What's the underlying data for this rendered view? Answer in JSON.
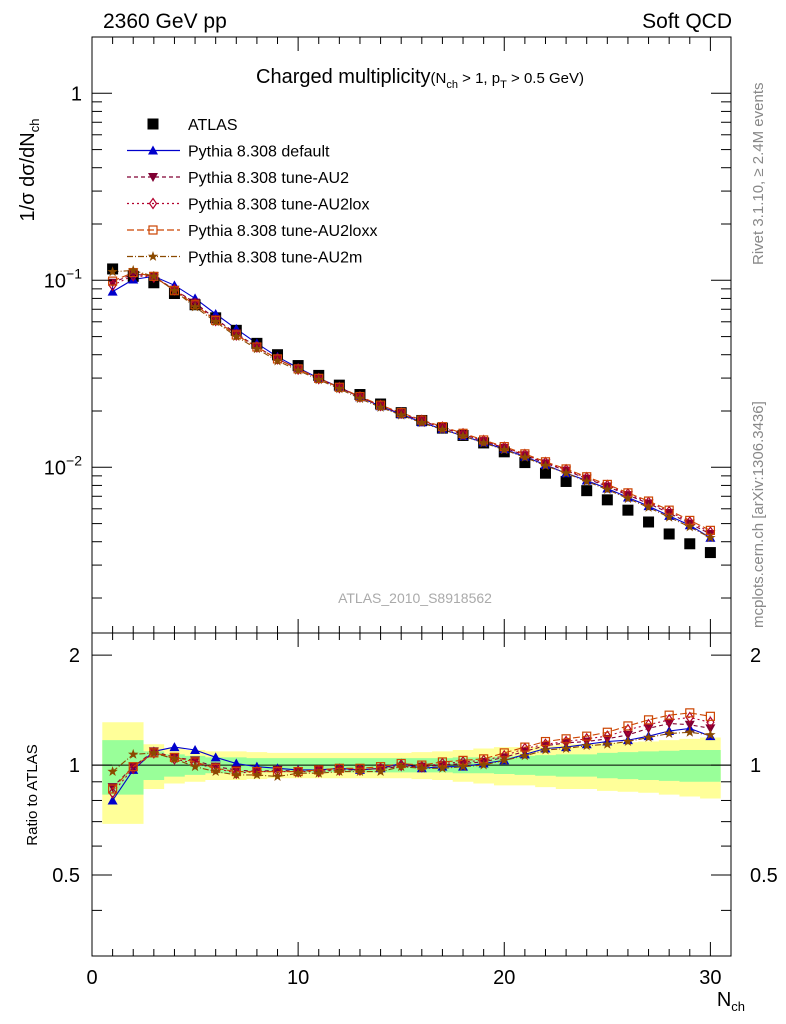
{
  "header": {
    "left": "2360 GeV pp",
    "right": "Soft QCD"
  },
  "side": {
    "rivet": "Rivet 3.1.10, ≥ 2.4M events",
    "mcplots": "mcplots.cern.ch [arXiv:1306.3436]"
  },
  "title": {
    "main": "Charged multiplicity",
    "cut_open": "(N",
    "cut_sub1": "ch",
    "cut_mid": " > 1, p",
    "cut_sub2": "T",
    "cut_close": " > 0.5 GeV)"
  },
  "analysis_id": "ATLAS_2010_S8918562",
  "colors": {
    "data": "#000000",
    "default": "#0000cc",
    "au2": "#800033",
    "au2lox": "#b3002d",
    "au2loxx": "#cc4400",
    "au2m": "#8b4a00",
    "band_inner": "#99ff99",
    "band_outer": "#ffff99"
  },
  "chart_data": [
    {
      "type": "scatter",
      "panel": "main",
      "ylabel_prefix": "1/σ dσ/dN",
      "ylabel_sub": "ch",
      "yscale": "log",
      "xlim": [
        0,
        31
      ],
      "ylim": [
        0.0013,
        2.0
      ],
      "yticks": [
        {
          "base": "1",
          "exp": ""
        },
        {
          "base": "10",
          "exp": "−1"
        },
        {
          "base": "10",
          "exp": "−2"
        }
      ],
      "x": [
        1,
        2,
        3,
        4,
        5,
        6,
        7,
        8,
        9,
        10,
        11,
        12,
        13,
        14,
        15,
        16,
        17,
        18,
        19,
        20,
        21,
        22,
        23,
        24,
        25,
        26,
        27,
        28,
        29,
        30
      ],
      "series": [
        {
          "key": "data",
          "name": "ATLAS",
          "marker": "square",
          "values": [
            0.115,
            0.105,
            0.097,
            0.085,
            0.074,
            0.063,
            0.054,
            0.046,
            0.04,
            0.035,
            0.031,
            0.0275,
            0.0245,
            0.0218,
            0.0196,
            0.0178,
            0.0162,
            0.0148,
            0.0135,
            0.0121,
            0.0106,
            0.0093,
            0.0084,
            0.0075,
            0.0067,
            0.0059,
            0.0051,
            0.0044,
            0.0039,
            0.0035
          ]
        },
        {
          "key": "default",
          "name": "Pythia 8.308 default",
          "marker": "triangle-up",
          "dash": "",
          "values": [
            0.087,
            0.101,
            0.105,
            0.094,
            0.08,
            0.066,
            0.055,
            0.046,
            0.039,
            0.034,
            0.03,
            0.0268,
            0.0237,
            0.0212,
            0.0192,
            0.0174,
            0.016,
            0.0147,
            0.0136,
            0.0125,
            0.0114,
            0.0103,
            0.0093,
            0.0085,
            0.0077,
            0.0069,
            0.0062,
            0.0055,
            0.0049,
            0.0042
          ]
        },
        {
          "key": "au2",
          "name": "Pythia 8.308 tune-AU2",
          "marker": "triangle-down",
          "dash": "4,3",
          "values": [
            0.097,
            0.108,
            0.105,
            0.089,
            0.076,
            0.062,
            0.052,
            0.044,
            0.038,
            0.0335,
            0.0298,
            0.0267,
            0.0237,
            0.0213,
            0.0194,
            0.0177,
            0.0163,
            0.015,
            0.0138,
            0.0127,
            0.0116,
            0.0105,
            0.0096,
            0.0087,
            0.0079,
            0.0071,
            0.0064,
            0.0057,
            0.005,
            0.0044
          ]
        },
        {
          "key": "au2lox",
          "name": "Pythia 8.308 tune-AU2lox",
          "marker": "diamond-open",
          "dash": "2,3",
          "values": [
            0.094,
            0.106,
            0.104,
            0.089,
            0.075,
            0.061,
            0.051,
            0.044,
            0.038,
            0.0335,
            0.0298,
            0.0267,
            0.0238,
            0.0214,
            0.0195,
            0.0178,
            0.0164,
            0.0151,
            0.0139,
            0.0128,
            0.0117,
            0.0106,
            0.0097,
            0.0088,
            0.008,
            0.0072,
            0.0065,
            0.0058,
            0.0051,
            0.0045
          ]
        },
        {
          "key": "au2loxx",
          "name": "Pythia 8.308 tune-AU2loxx",
          "marker": "square-open",
          "dash": "7,3",
          "values": [
            0.099,
            0.11,
            0.105,
            0.088,
            0.074,
            0.061,
            0.051,
            0.044,
            0.038,
            0.0336,
            0.0299,
            0.0268,
            0.0239,
            0.0215,
            0.0196,
            0.0179,
            0.0165,
            0.0152,
            0.014,
            0.0129,
            0.0118,
            0.0107,
            0.0098,
            0.0089,
            0.0081,
            0.0073,
            0.0066,
            0.0059,
            0.0052,
            0.0046
          ]
        },
        {
          "key": "au2m",
          "name": "Pythia 8.308 tune-AU2m",
          "marker": "star",
          "dash": "6,2,1,2",
          "values": [
            0.111,
            0.113,
            0.105,
            0.088,
            0.072,
            0.06,
            0.05,
            0.043,
            0.037,
            0.033,
            0.0294,
            0.0263,
            0.0233,
            0.0209,
            0.019,
            0.0173,
            0.0159,
            0.0147,
            0.0135,
            0.0124,
            0.0113,
            0.0102,
            0.0093,
            0.0084,
            0.0076,
            0.0068,
            0.0061,
            0.0054,
            0.0048,
            0.0042
          ]
        }
      ]
    },
    {
      "type": "line",
      "panel": "ratio",
      "ylabel": "Ratio to ATLAS",
      "xlabel_prefix": "N",
      "xlabel_sub": "ch",
      "xlim": [
        0,
        31
      ],
      "ylim": [
        0.3,
        2.3
      ],
      "xticks": [
        "0",
        "10",
        "20",
        "30"
      ],
      "yticks": [
        "0.5",
        "1",
        "2"
      ],
      "band_x": [
        0.5,
        1.5,
        2.5,
        3.5,
        4.5,
        5.5,
        6.5,
        7.5,
        8.5,
        9.5,
        10.5,
        11.5,
        12.5,
        13.5,
        14.5,
        15.5,
        16.5,
        17.5,
        18.5,
        19.5,
        20.5,
        21.5,
        22.5,
        23.5,
        24.5,
        25.5,
        26.5,
        27.5,
        28.5,
        29.5,
        30.5
      ],
      "band_inner": [
        0.17,
        0.17,
        0.09,
        0.07,
        0.06,
        0.05,
        0.05,
        0.045,
        0.045,
        0.045,
        0.045,
        0.045,
        0.045,
        0.045,
        0.045,
        0.045,
        0.045,
        0.05,
        0.05,
        0.055,
        0.06,
        0.065,
        0.07,
        0.07,
        0.08,
        0.085,
        0.09,
        0.095,
        0.1,
        0.1
      ],
      "band_outer": [
        0.31,
        0.31,
        0.14,
        0.11,
        0.1,
        0.09,
        0.09,
        0.085,
        0.08,
        0.08,
        0.08,
        0.08,
        0.08,
        0.08,
        0.08,
        0.085,
        0.09,
        0.1,
        0.11,
        0.12,
        0.12,
        0.13,
        0.14,
        0.14,
        0.15,
        0.155,
        0.16,
        0.17,
        0.18,
        0.19
      ],
      "series": [
        {
          "key": "default",
          "values": [
            0.8,
            0.97,
            1.09,
            1.12,
            1.1,
            1.05,
            1.01,
            0.99,
            0.98,
            0.97,
            0.97,
            0.98,
            0.97,
            0.98,
            1.01,
            0.98,
            0.99,
            0.99,
            1.01,
            1.03,
            1.07,
            1.11,
            1.12,
            1.14,
            1.16,
            1.17,
            1.2,
            1.24,
            1.26,
            1.2
          ]
        },
        {
          "key": "au2",
          "values": [
            0.87,
            0.99,
            1.09,
            1.05,
            1.03,
            0.99,
            0.97,
            0.96,
            0.97,
            0.96,
            0.97,
            0.97,
            0.97,
            0.98,
            0.99,
            0.99,
            1.0,
            1.01,
            1.02,
            1.05,
            1.09,
            1.13,
            1.15,
            1.16,
            1.18,
            1.21,
            1.26,
            1.3,
            1.29,
            1.26
          ]
        },
        {
          "key": "au2lox",
          "values": [
            0.84,
            0.98,
            1.08,
            1.04,
            1.01,
            0.98,
            0.95,
            0.96,
            0.96,
            0.96,
            0.96,
            0.97,
            0.97,
            0.98,
            1.0,
            0.99,
            1.01,
            1.02,
            1.03,
            1.06,
            1.11,
            1.14,
            1.16,
            1.18,
            1.2,
            1.25,
            1.29,
            1.33,
            1.35,
            1.31
          ]
        },
        {
          "key": "au2loxx",
          "values": [
            0.86,
            0.99,
            1.08,
            1.05,
            1.02,
            0.98,
            0.96,
            0.96,
            0.96,
            0.96,
            0.97,
            0.98,
            0.98,
            0.99,
            1.01,
            1.0,
            1.02,
            1.03,
            1.04,
            1.08,
            1.12,
            1.16,
            1.18,
            1.2,
            1.23,
            1.28,
            1.33,
            1.37,
            1.39,
            1.36
          ]
        },
        {
          "key": "au2m",
          "values": [
            0.96,
            1.07,
            1.08,
            1.04,
            0.99,
            0.96,
            0.94,
            0.94,
            0.93,
            0.95,
            0.95,
            0.96,
            0.96,
            0.96,
            0.99,
            0.98,
            0.98,
            0.99,
            1.0,
            1.03,
            1.06,
            1.1,
            1.11,
            1.13,
            1.14,
            1.16,
            1.19,
            1.22,
            1.23,
            1.21
          ]
        }
      ]
    }
  ]
}
